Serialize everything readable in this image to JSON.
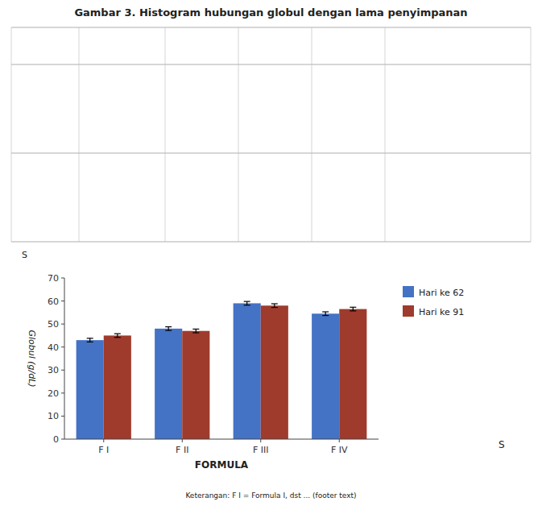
{
  "chart_data": {
    "type": "bar",
    "title": "Gambar 3. Histogram hubungan globul dengan lama penyimpanan",
    "x_label": "FORMULA",
    "y_label": "Globul (g/dL)",
    "categories": [
      "F I",
      "F II",
      "F III",
      "F IV"
    ],
    "series": [
      {
        "name": "Hari ke 62",
        "color": "#4472C4",
        "values": [
          43.0,
          48.0,
          59.0,
          54.5
        ],
        "errors": [
          0.8,
          0.8,
          0.8,
          0.8
        ]
      },
      {
        "name": "Hari ke 91",
        "color": "#9E3B2D",
        "values": [
          45.0,
          47.0,
          58.0,
          56.5
        ],
        "errors": [
          0.8,
          0.8,
          0.8,
          0.8
        ]
      }
    ],
    "ylim": [
      0,
      70
    ],
    "yticks": [
      0,
      10,
      20,
      30,
      40,
      50,
      60,
      70
    ],
    "grid": false,
    "legend": "right",
    "annotations": [
      "S",
      "S",
      "Keterangan: F I = Formula I, dst ... (footer text)"
    ]
  }
}
